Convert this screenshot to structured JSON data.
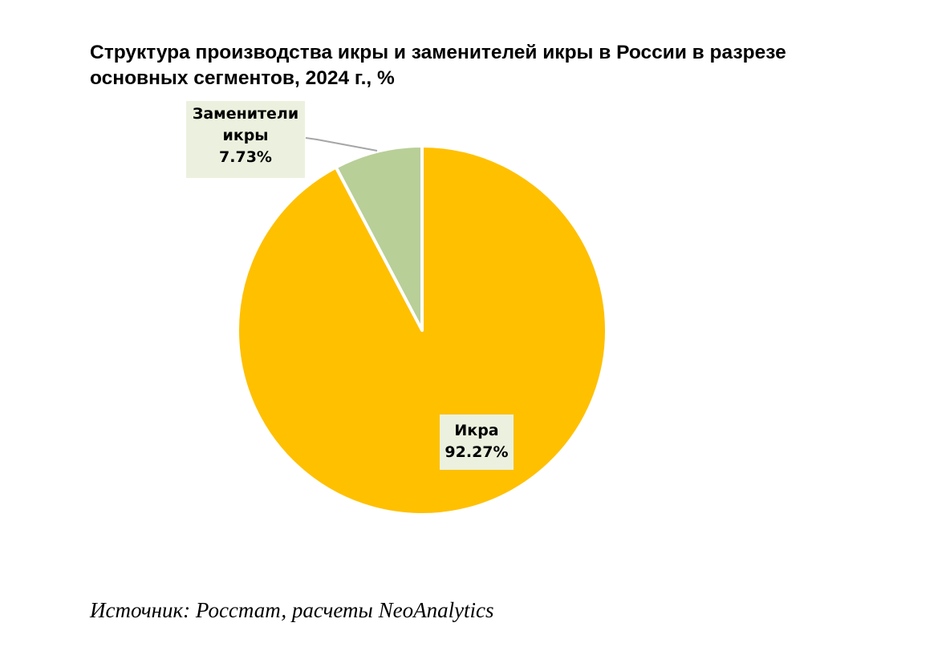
{
  "title_lines": [
    "Структура производства икры и заменителей икры в России в разрезе",
    "основных сегментов, 2024 г., %"
  ],
  "source": "Источник: Росстат, расчеты NeoAnalytics",
  "chart_data": {
    "type": "pie",
    "title": "Структура производства икры и заменителей икры в России в разрезе основных сегментов, 2024 г., %",
    "unit": "%",
    "start": "12 o'clock",
    "direction": "counterclockwise",
    "slices": [
      {
        "name": "Заменители икры",
        "value": 7.73,
        "label_lines": [
          "Заменители",
          "икры"
        ],
        "value_label": "7.73%",
        "color": "#b8cf97"
      },
      {
        "name": "Икра",
        "value": 92.27,
        "label_lines": [
          "Икра"
        ],
        "value_label": "92.27%",
        "color": "#ffc000"
      }
    ],
    "label_background": "#ebf1de",
    "slice_border": "#ffffff",
    "leader_line_color": "#a6a6a6"
  }
}
